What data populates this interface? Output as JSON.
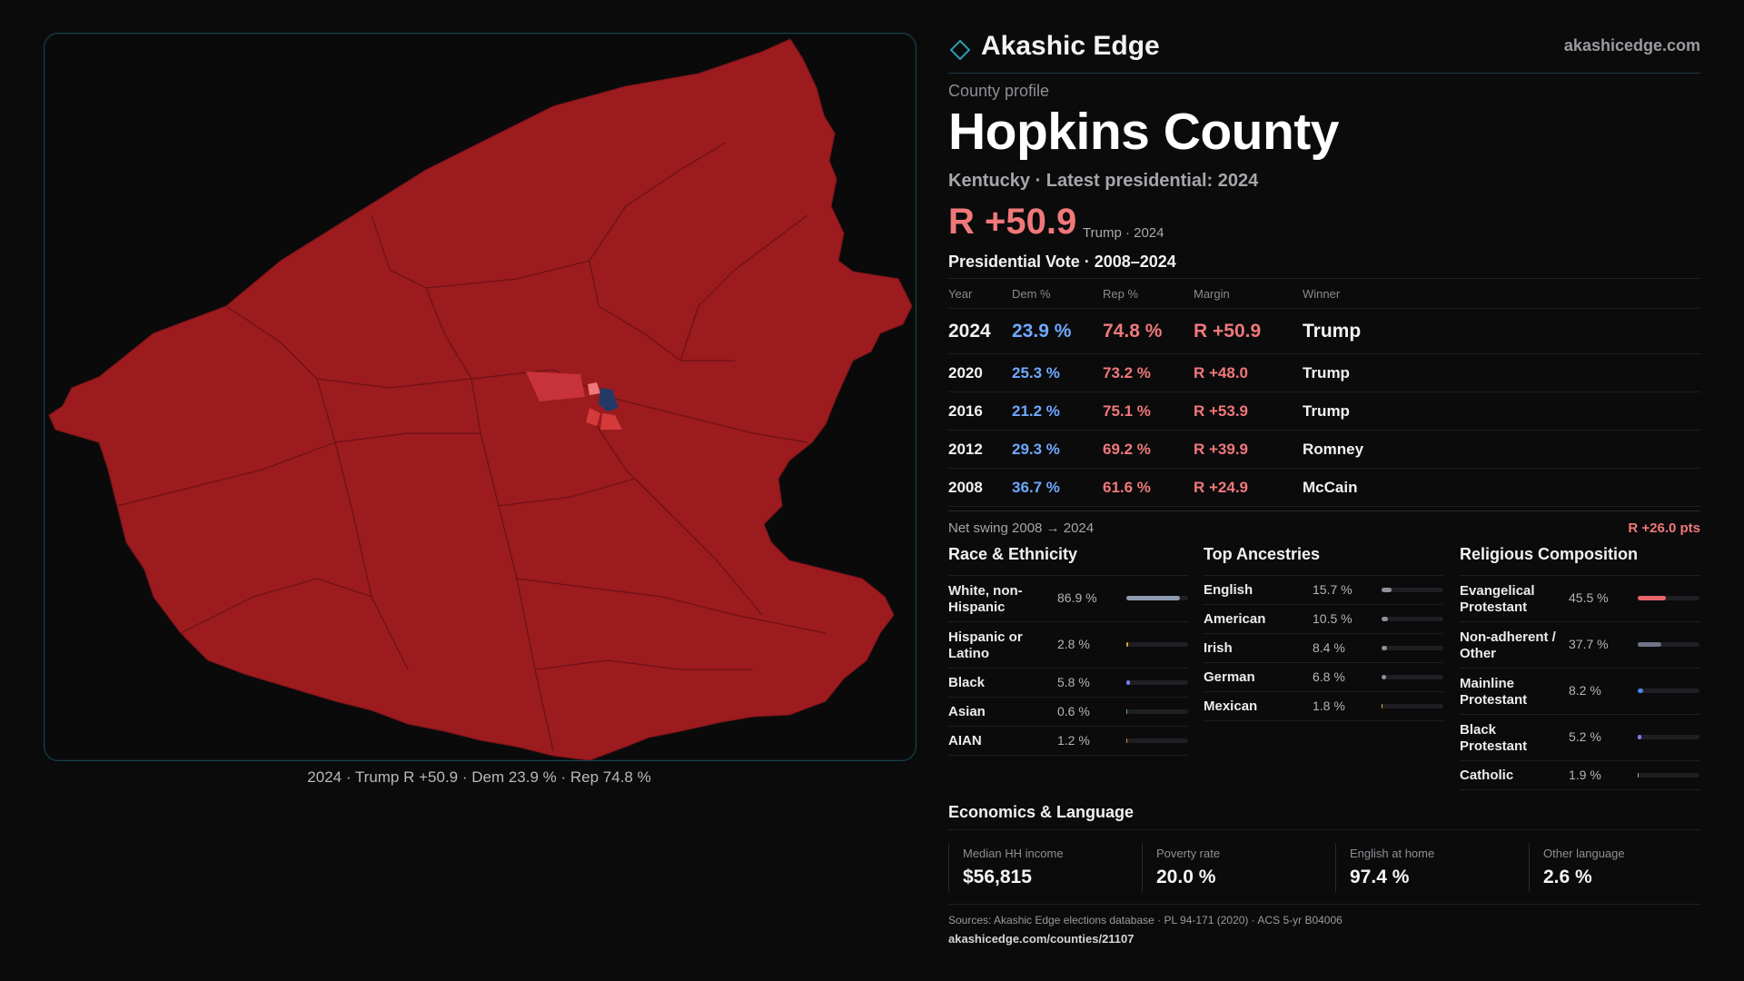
{
  "brand": {
    "name": "Akashic Edge",
    "site": "akashicedge.com"
  },
  "profile": {
    "eyebrow": "County profile",
    "title": "Hopkins County",
    "subtitle": "Kentucky · Latest presidential: 2024",
    "headline_margin": "R +50.9",
    "headline_note": "Trump · 2024"
  },
  "map": {
    "caption": "2024 · Trump R +50.9 · Dem 23.9 % · Rep 74.8 %",
    "colors": {
      "strong_rep": "#9b1b1f",
      "rep": "#d43a3a",
      "lean_rep": "#f0787a",
      "dem": "#243a66",
      "border": "#3a3a3f"
    }
  },
  "votes": {
    "heading": "Presidential Vote · 2008–2024",
    "columns": [
      "Year",
      "Dem %",
      "Rep %",
      "Margin",
      "Winner"
    ],
    "rows": [
      {
        "year": "2024",
        "dem": "23.9 %",
        "rep": "74.8 %",
        "margin": "R +50.9",
        "winner": "Trump"
      },
      {
        "year": "2020",
        "dem": "25.3 %",
        "rep": "73.2 %",
        "margin": "R +48.0",
        "winner": "Trump"
      },
      {
        "year": "2016",
        "dem": "21.2 %",
        "rep": "75.1 %",
        "margin": "R +53.9",
        "winner": "Trump"
      },
      {
        "year": "2012",
        "dem": "29.3 %",
        "rep": "69.2 %",
        "margin": "R +39.9",
        "winner": "Romney"
      },
      {
        "year": "2008",
        "dem": "36.7 %",
        "rep": "61.6 %",
        "margin": "R +24.9",
        "winner": "McCain"
      }
    ],
    "swing_label": "Net swing 2008 → 2024",
    "swing_value": "R +26.0 pts"
  },
  "race": {
    "title": "Race & Ethnicity",
    "items": [
      {
        "label": "White, non-Hispanic",
        "pct": "86.9 %",
        "value": 86.9,
        "color": "#8f9bb0"
      },
      {
        "label": "Hispanic or Latino",
        "pct": "2.8 %",
        "value": 2.8,
        "color": "#d9a03a"
      },
      {
        "label": "Black",
        "pct": "5.8 %",
        "value": 5.8,
        "color": "#7b7cf0"
      },
      {
        "label": "Asian",
        "pct": "0.6 %",
        "value": 0.6,
        "color": "#4fb0a0"
      },
      {
        "label": "AIAN",
        "pct": "1.2 %",
        "value": 1.2,
        "color": "#d08a3a"
      }
    ]
  },
  "ancestry": {
    "title": "Top Ancestries",
    "items": [
      {
        "label": "English",
        "pct": "15.7 %",
        "value": 15.7,
        "color": "#8f9199"
      },
      {
        "label": "American",
        "pct": "10.5 %",
        "value": 10.5,
        "color": "#8f9199"
      },
      {
        "label": "Irish",
        "pct": "8.4 %",
        "value": 8.4,
        "color": "#8f9199"
      },
      {
        "label": "German",
        "pct": "6.8 %",
        "value": 6.8,
        "color": "#8f9199"
      },
      {
        "label": "Mexican",
        "pct": "1.8 %",
        "value": 1.8,
        "color": "#d9a03a"
      }
    ]
  },
  "religion": {
    "title": "Religious Composition",
    "items": [
      {
        "label": "Evangelical Protestant",
        "pct": "45.5 %",
        "value": 45.5,
        "color": "#e8656a"
      },
      {
        "label": "Non-adherent / Other",
        "pct": "37.7 %",
        "value": 37.7,
        "color": "#6f7486"
      },
      {
        "label": "Mainline Protestant",
        "pct": "8.2 %",
        "value": 8.2,
        "color": "#4a86e8"
      },
      {
        "label": "Black Protestant",
        "pct": "5.2 %",
        "value": 5.2,
        "color": "#7b7cf0"
      },
      {
        "label": "Catholic",
        "pct": "1.9 %",
        "value": 1.9,
        "color": "#d9a03a"
      }
    ]
  },
  "economics": {
    "title": "Economics & Language",
    "items": [
      {
        "label": "Median HH income",
        "value": "$56,815"
      },
      {
        "label": "Poverty rate",
        "value": "20.0 %"
      },
      {
        "label": "English at home",
        "value": "97.4 %"
      },
      {
        "label": "Other language",
        "value": "2.6 %"
      }
    ]
  },
  "footer": {
    "sources": "Sources: Akashic Edge elections database · PL 94-171 (2020) · ACS 5-yr B04006",
    "url": "akashicedge.com/counties/21107"
  }
}
